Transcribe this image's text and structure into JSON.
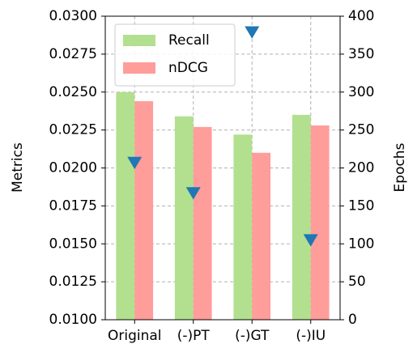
{
  "chart_data": {
    "type": "bar",
    "categories": [
      "Original",
      "(-)PT",
      "(-)GT",
      "(-)IU"
    ],
    "series": [
      {
        "name": "Recall",
        "color": "#b2e08f",
        "values": [
          0.025,
          0.0234,
          0.0222,
          0.0235
        ]
      },
      {
        "name": "nDCG",
        "color": "#ff9d9a",
        "values": [
          0.0244,
          0.0227,
          0.021,
          0.0228
        ]
      },
      {
        "color": "#1f77b4",
        "axis": "y2",
        "marker": "triangle-down",
        "values": [
          207,
          167,
          379,
          105
        ]
      }
    ],
    "ylabel": "Metrics",
    "y2label": "Epochs",
    "ylim": [
      0.01,
      0.03
    ],
    "yticks": [
      {
        "value": 0.01,
        "label": "0.0100"
      },
      {
        "value": 0.0125,
        "label": "0.0125"
      },
      {
        "value": 0.015,
        "label": "0.0150"
      },
      {
        "value": 0.0175,
        "label": "0.0175"
      },
      {
        "value": 0.02,
        "label": "0.0200"
      },
      {
        "value": 0.0225,
        "label": "0.0225"
      },
      {
        "value": 0.025,
        "label": "0.0250"
      },
      {
        "value": 0.0275,
        "label": "0.0275"
      },
      {
        "value": 0.03,
        "label": "0.0300"
      }
    ],
    "y2lim": [
      0,
      400
    ],
    "y2ticks": [
      0,
      50,
      100,
      150,
      200,
      250,
      300,
      350,
      400
    ],
    "grid": true,
    "legend": "upper left"
  }
}
